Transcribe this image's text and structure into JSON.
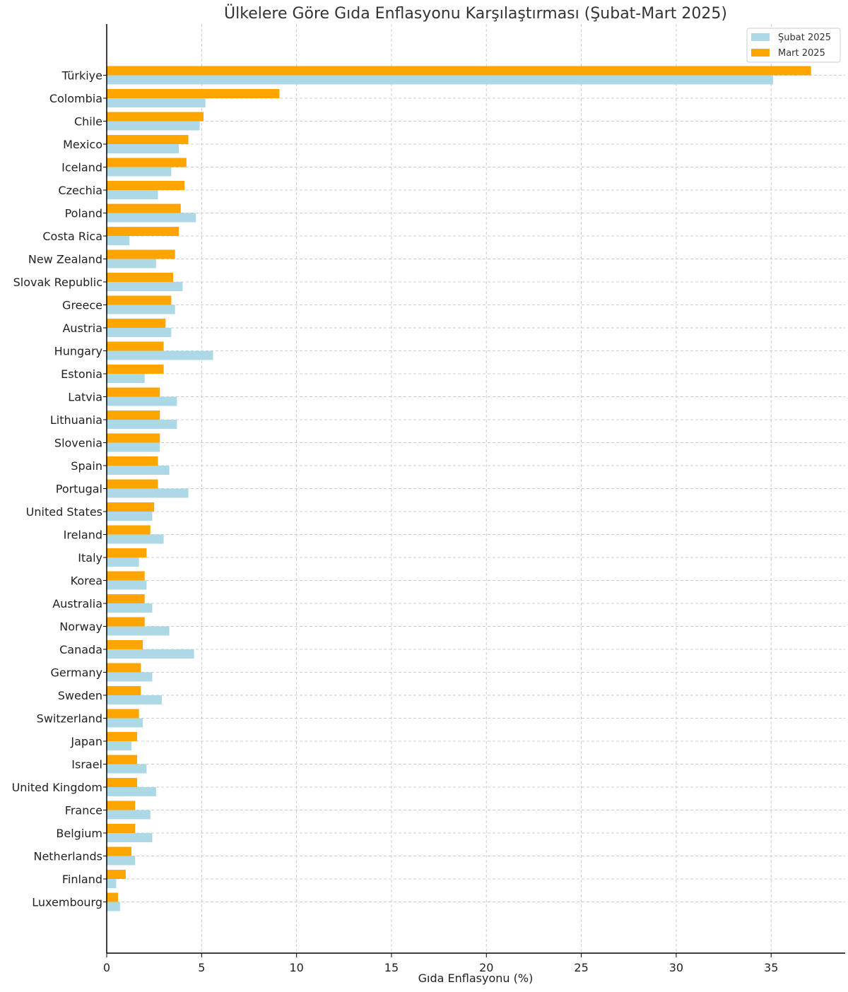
{
  "chart_data": {
    "type": "bar",
    "orientation": "horizontal",
    "title": "Ülkelere Göre Gıda Enflasyonu Karşılaştırması (Şubat-Mart 2025)",
    "xlabel": "Gıda Enflasyonu (%)",
    "ylabel": "",
    "xlim": [
      0,
      38.9
    ],
    "xticks": [
      0,
      5,
      10,
      15,
      20,
      25,
      30,
      35
    ],
    "grid": true,
    "legend_position": "top-right",
    "categories": [
      "Türkiye",
      "Colombia",
      "Chile",
      "Mexico",
      "Iceland",
      "Czechia",
      "Poland",
      "Costa Rica",
      "New Zealand",
      "Slovak Republic",
      "Greece",
      "Austria",
      "Hungary",
      "Estonia",
      "Latvia",
      "Lithuania",
      "Slovenia",
      "Spain",
      "Portugal",
      "United States",
      "Ireland",
      "Italy",
      "Korea",
      "Australia",
      "Norway",
      "Canada",
      "Germany",
      "Sweden",
      "Switzerland",
      "Japan",
      "Israel",
      "United Kingdom",
      "France",
      "Belgium",
      "Netherlands",
      "Finland",
      "Luxembourg"
    ],
    "series": [
      {
        "name": "Şubat 2025",
        "color": "#add8e6",
        "values": [
          35.1,
          5.2,
          4.9,
          3.8,
          3.4,
          2.7,
          4.7,
          1.2,
          2.6,
          4.0,
          3.6,
          3.4,
          5.6,
          2.0,
          3.7,
          3.7,
          2.8,
          3.3,
          4.3,
          2.4,
          3.0,
          1.7,
          2.1,
          2.4,
          3.3,
          4.6,
          2.4,
          2.9,
          1.9,
          1.3,
          2.1,
          2.6,
          2.3,
          2.4,
          1.5,
          0.5,
          0.7
        ]
      },
      {
        "name": "Mart 2025",
        "color": "#ffa500",
        "values": [
          37.1,
          9.1,
          5.1,
          4.3,
          4.2,
          4.1,
          3.9,
          3.8,
          3.6,
          3.5,
          3.4,
          3.1,
          3.0,
          3.0,
          2.8,
          2.8,
          2.8,
          2.7,
          2.7,
          2.5,
          2.3,
          2.1,
          2.0,
          2.0,
          2.0,
          1.9,
          1.8,
          1.8,
          1.7,
          1.6,
          1.6,
          1.6,
          1.5,
          1.5,
          1.3,
          1.0,
          0.6
        ]
      }
    ]
  }
}
